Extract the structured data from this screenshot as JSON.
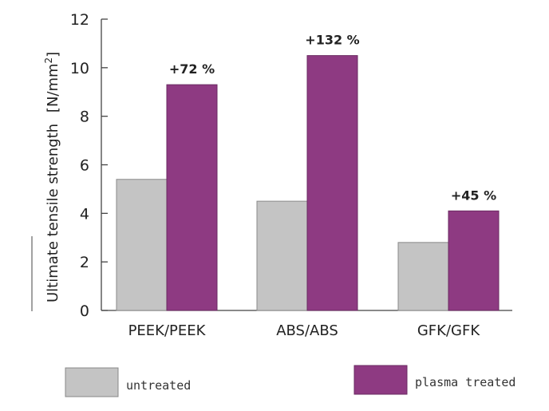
{
  "chart_data": {
    "type": "bar",
    "categories": [
      "PEEK/PEEK",
      "ABS/ABS",
      "GFK/GFK"
    ],
    "series": [
      {
        "name": "untreated",
        "values": [
          5.4,
          4.5,
          2.8
        ],
        "color": "#c4c4c4"
      },
      {
        "name": "plasma treated",
        "values": [
          9.3,
          10.5,
          4.1
        ],
        "color": "#8e3a82"
      }
    ],
    "annotations": [
      "+72 %",
      "+132 %",
      "+45 %"
    ],
    "ylabel_main": "Ultimate tensile strength",
    "ylabel_unit": "[N/mm",
    "ylabel_sup": "2",
    "ylabel_close": "]",
    "yticks": [
      "0",
      "2",
      "4",
      "6",
      "8",
      "10",
      "12"
    ],
    "ylim": [
      0,
      12
    ],
    "grid": false,
    "legend_position": "bottom"
  }
}
